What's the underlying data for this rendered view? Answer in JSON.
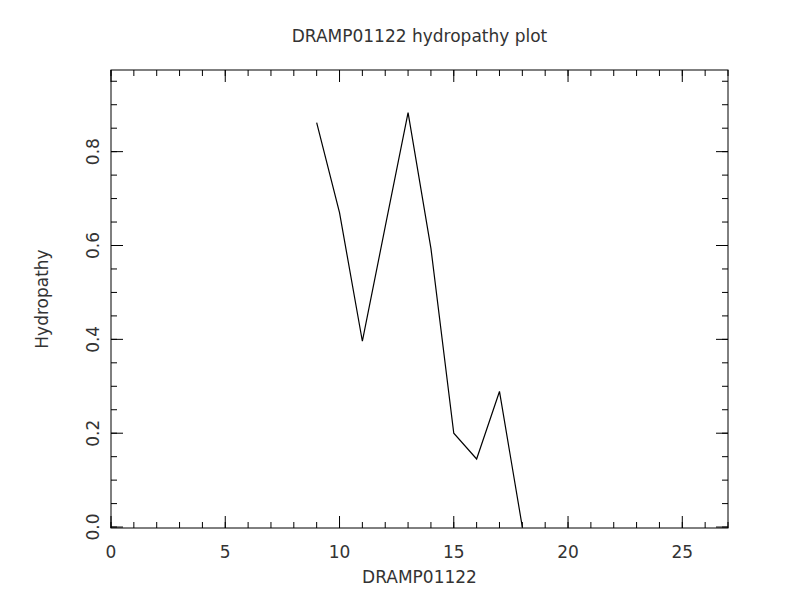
{
  "chart_data": {
    "type": "line",
    "title": "DRAMP01122 hydropathy plot",
    "x_label": "DRAMP01122",
    "y_label": "Hydropathy",
    "x": [
      9,
      10,
      11,
      12,
      13,
      14,
      15,
      16,
      17,
      18
    ],
    "values": [
      0.862,
      0.67,
      0.396,
      0.64,
      0.883,
      0.594,
      0.2,
      0.145,
      0.289,
      0.0
    ],
    "color": "#000000",
    "xlim": [
      0,
      27
    ],
    "xticks": [
      0,
      5,
      10,
      15,
      20,
      25
    ],
    "ylim": [
      -0.002,
      0.974
    ],
    "yticks": [
      {
        "value": 0,
        "label": "0.0"
      },
      0.2,
      0.4,
      0.6,
      0.8
    ],
    "grid": false
  }
}
